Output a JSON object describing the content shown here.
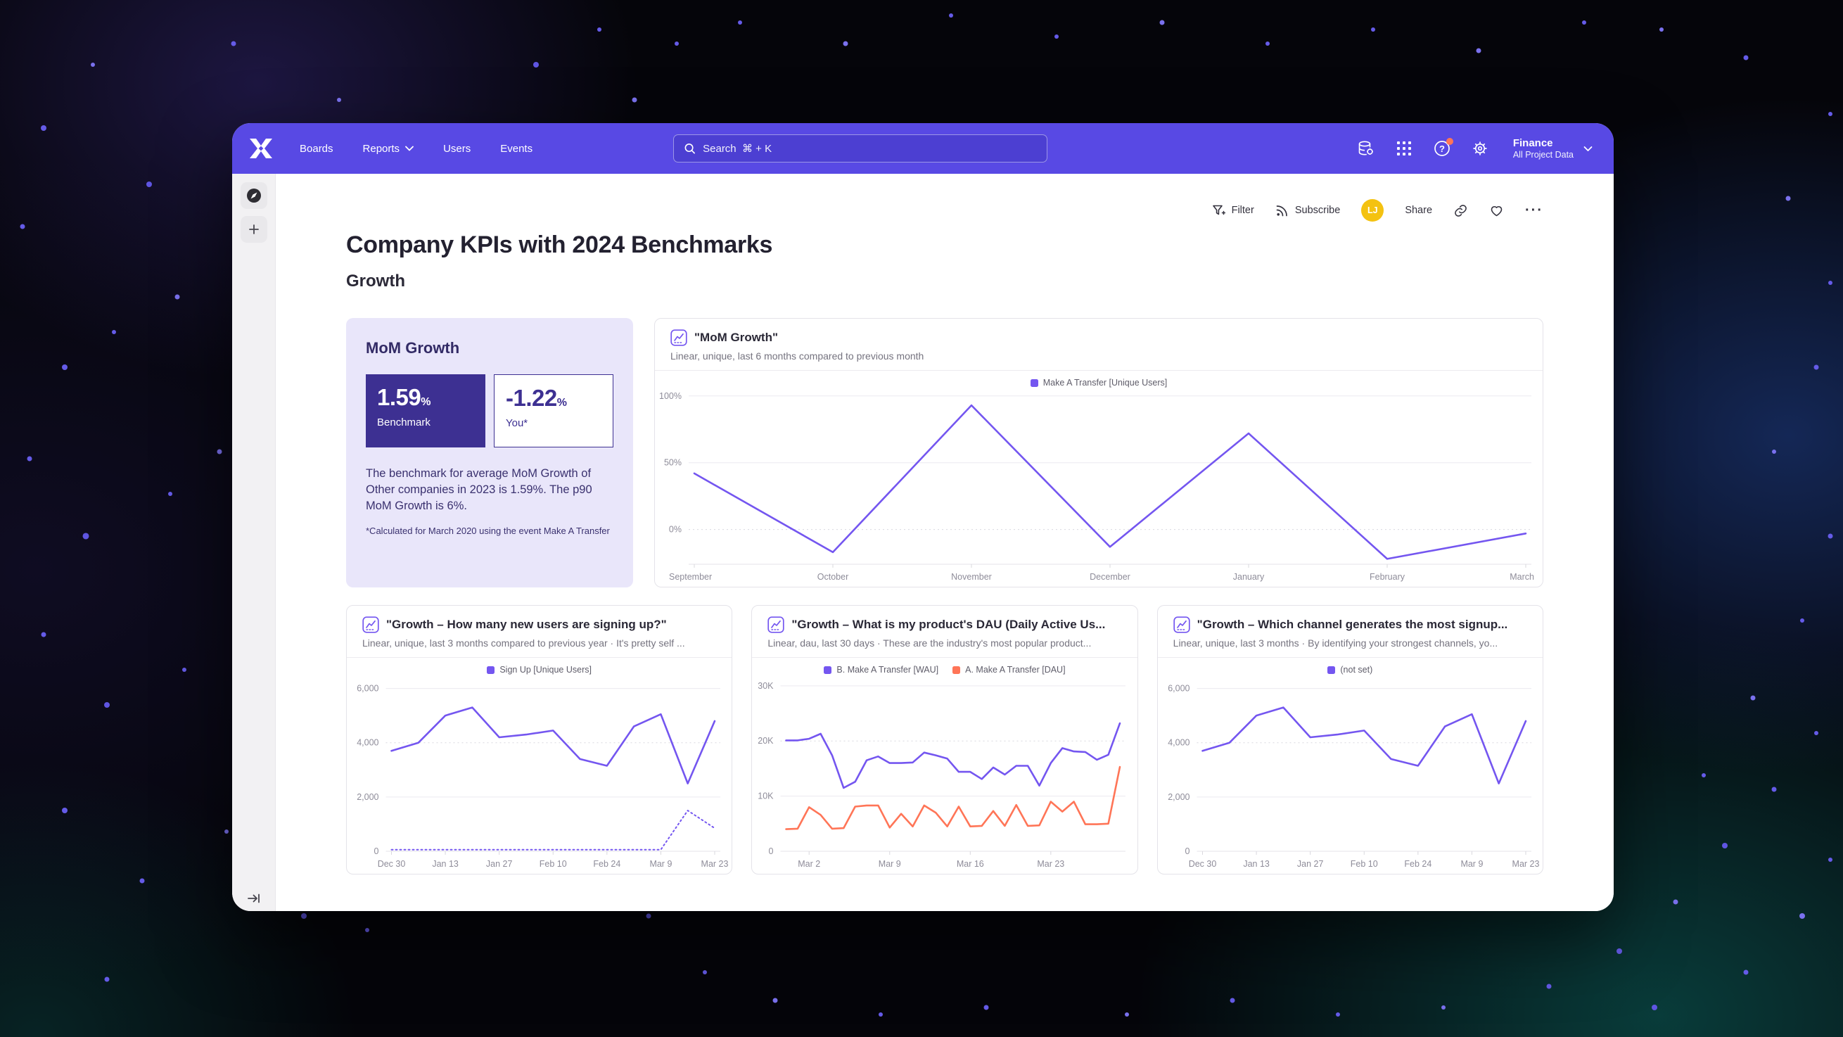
{
  "nav": {
    "items": [
      "Boards",
      "Reports",
      "Users",
      "Events"
    ],
    "search_placeholder": "Search  ⌘ + K",
    "project": {
      "name": "Finance",
      "scope": "All Project Data"
    }
  },
  "toolbar": {
    "filter_label": "Filter",
    "subscribe_label": "Subscribe",
    "share_label": "Share",
    "avatar_initials": "LJ",
    "more_label": "···"
  },
  "page": {
    "title": "Company KPIs with 2024 Benchmarks",
    "section": "Growth"
  },
  "benchmark_card": {
    "title": "MoM Growth",
    "benchmark": {
      "value": "1.59",
      "unit": "%",
      "label": "Benchmark"
    },
    "you": {
      "value": "-1.22",
      "unit": "%",
      "label": "You*"
    },
    "description": "The benchmark for average MoM Growth of Other companies in 2023 is 1.59%. The p90 MoM Growth is 6%.",
    "footnote": "*Calculated for March 2020 using the event Make A Transfer"
  },
  "colors": {
    "purple": "#7456F0",
    "orange": "#FF7557",
    "nav": "#5849E4",
    "accent_dark": "#3D3092"
  },
  "chart_data": [
    {
      "type": "line",
      "title": "\"MoM Growth\"",
      "subtitle": "Linear, unique, last 6 months compared to previous month",
      "legend": [
        {
          "label": "Make A Transfer [Unique Users]",
          "color": "#7456F0"
        }
      ],
      "ylim": [
        -26,
        102
      ],
      "yticks": [
        {
          "value": 100,
          "label": "100%"
        },
        {
          "value": 50,
          "label": "50%"
        },
        {
          "value": 0,
          "label": "0%",
          "dotted": true
        }
      ],
      "xticks": [
        "September",
        "October",
        "November",
        "December",
        "January",
        "February",
        "March"
      ],
      "xtick_indices": [
        0,
        1,
        2,
        3,
        4,
        5,
        6
      ],
      "edge_labels": true,
      "series": [
        {
          "name": "Make A Transfer [Unique Users]",
          "color": "#7456F0",
          "dashed": false,
          "values": [
            42,
            -17,
            93,
            -13,
            72,
            -22,
            -3
          ]
        }
      ]
    },
    {
      "type": "line",
      "title": "\"Growth – How many new users are signing up?\"",
      "subtitle": "Linear, unique, last 3 months compared to previous year · It's pretty self ...",
      "legend": [
        {
          "label": "Sign Up [Unique Users]",
          "color": "#7456F0"
        }
      ],
      "ylim": [
        0,
        6300
      ],
      "yticks": [
        {
          "value": 6000,
          "label": "6,000"
        },
        {
          "value": 4000,
          "label": "4,000",
          "dotted": true
        },
        {
          "value": 2000,
          "label": "2,000"
        },
        {
          "value": 0,
          "label": "0"
        }
      ],
      "xticks": [
        "Dec 30",
        "Jan 13",
        "Jan 27",
        "Feb 10",
        "Feb 24",
        "Mar 9",
        "Mar 23"
      ],
      "xtick_indices": [
        0,
        2,
        4,
        6,
        8,
        10,
        12
      ],
      "edge_labels": false,
      "series": [
        {
          "name": "Sign Up [Unique Users]",
          "color": "#7456F0",
          "dashed": false,
          "values": [
            3700,
            4000,
            5000,
            5300,
            4200,
            4300,
            4450,
            3400,
            3150,
            4600,
            5050,
            2500,
            4800
          ]
        },
        {
          "name": "Sign Up [Unique Users] previous year",
          "color": "#7456F0",
          "dashed": true,
          "values": [
            60,
            60,
            60,
            60,
            60,
            60,
            60,
            60,
            60,
            60,
            60,
            1500,
            850
          ]
        }
      ]
    },
    {
      "type": "line",
      "title": "\"Growth – What is my product's DAU (Daily Active Us...",
      "subtitle": "Linear, dau, last 30 days · These are the industry's most popular product...",
      "legend": [
        {
          "label": "B. Make A Transfer [WAU]",
          "color": "#7456F0"
        },
        {
          "label": "A. Make A Transfer [DAU]",
          "color": "#FF7557"
        }
      ],
      "ylim": [
        0,
        31000
      ],
      "yticks": [
        {
          "value": 30000,
          "label": "30K"
        },
        {
          "value": 20000,
          "label": "20K",
          "dotted": true
        },
        {
          "value": 10000,
          "label": "10K"
        },
        {
          "value": 0,
          "label": "0"
        }
      ],
      "xticks": [
        "Mar 2",
        "Mar 9",
        "Mar 16",
        "Mar 23"
      ],
      "xtick_indices": [
        2,
        9,
        16,
        23
      ],
      "edge_labels": false,
      "series": [
        {
          "name": "B. Make A Transfer [WAU]",
          "color": "#7456F0",
          "dashed": false,
          "values": [
            20100,
            20100,
            20400,
            21300,
            17400,
            11500,
            12600,
            16500,
            17200,
            16000,
            16000,
            16100,
            17900,
            17400,
            16800,
            14400,
            14400,
            13100,
            15200,
            13900,
            15500,
            15500,
            11900,
            16000,
            18700,
            18100,
            18000,
            16600,
            17500,
            23200
          ]
        },
        {
          "name": "A. Make A Transfer [DAU]",
          "color": "#FF7557",
          "dashed": false,
          "values": [
            4000,
            4100,
            8000,
            6600,
            4100,
            4200,
            8100,
            8300,
            8300,
            4300,
            6800,
            4500,
            8300,
            7000,
            4500,
            8100,
            4500,
            4600,
            7300,
            4600,
            8400,
            4600,
            4700,
            9000,
            7200,
            9000,
            4900,
            4900,
            5000,
            15300
          ]
        }
      ]
    },
    {
      "type": "line",
      "title": "\"Growth – Which channel generates the most signup...",
      "subtitle": "Linear, unique, last 3 months · By identifying your strongest channels, yo...",
      "legend": [
        {
          "label": "(not set)",
          "color": "#7456F0"
        }
      ],
      "ylim": [
        0,
        6300
      ],
      "yticks": [
        {
          "value": 6000,
          "label": "6,000"
        },
        {
          "value": 4000,
          "label": "4,000",
          "dotted": true
        },
        {
          "value": 2000,
          "label": "2,000"
        },
        {
          "value": 0,
          "label": "0"
        }
      ],
      "xticks": [
        "Dec 30",
        "Jan 13",
        "Jan 27",
        "Feb 10",
        "Feb 24",
        "Mar 9",
        "Mar 23"
      ],
      "xtick_indices": [
        0,
        2,
        4,
        6,
        8,
        10,
        12
      ],
      "edge_labels": false,
      "series": [
        {
          "name": "(not set)",
          "color": "#7456F0",
          "dashed": false,
          "values": [
            3700,
            4000,
            5000,
            5300,
            4200,
            4300,
            4450,
            3400,
            3150,
            4600,
            5050,
            2500,
            4800
          ]
        }
      ]
    }
  ]
}
